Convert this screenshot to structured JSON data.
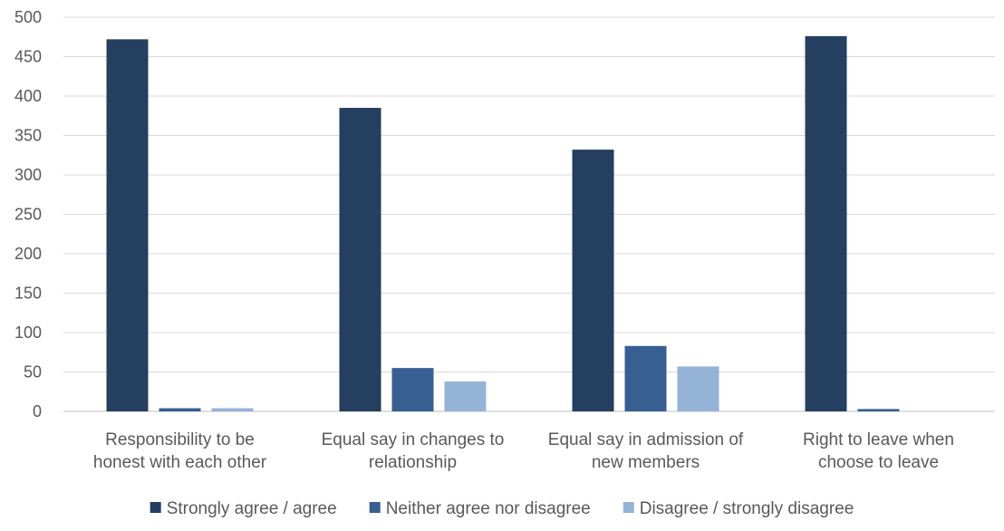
{
  "chart_data": {
    "type": "bar",
    "title": "",
    "xlabel": "",
    "ylabel": "",
    "ylim": [
      0,
      500
    ],
    "ytick_step": 50,
    "grid": true,
    "legend_position": "bottom",
    "categories": [
      [
        "Responsibility to be",
        "honest with each other"
      ],
      [
        "Equal say in changes to",
        "relationship"
      ],
      [
        "Equal say in admission of",
        "new members"
      ],
      [
        "Right to leave when",
        "choose to leave"
      ]
    ],
    "series": [
      {
        "name": "Strongly agree / agree",
        "color": "#243f60",
        "values": [
          472,
          385,
          332,
          476
        ]
      },
      {
        "name": "Neither agree nor disagree",
        "color": "#375f92",
        "values": [
          4,
          55,
          83,
          3
        ]
      },
      {
        "name": "Disagree / strongly disagree",
        "color": "#95b3d7",
        "values": [
          4,
          38,
          57,
          0
        ]
      }
    ]
  }
}
